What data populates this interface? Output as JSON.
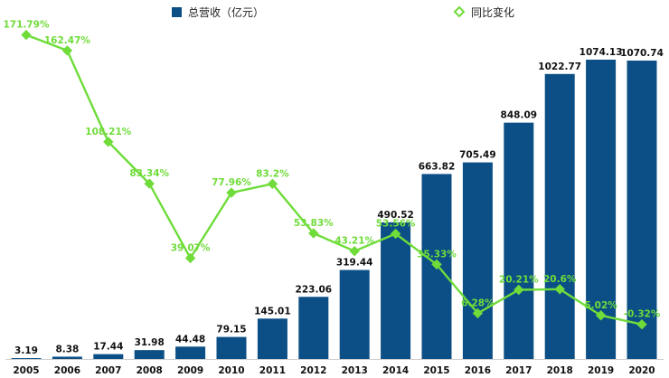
{
  "chart_data": {
    "type": "bar",
    "categories": [
      "2005",
      "2006",
      "2007",
      "2008",
      "2009",
      "2010",
      "2011",
      "2012",
      "2013",
      "2014",
      "2015",
      "2016",
      "2017",
      "2018",
      "2019",
      "2020"
    ],
    "series": [
      {
        "name": "总营收（亿元）",
        "type": "bar",
        "values": [
          3.19,
          8.38,
          17.44,
          31.98,
          44.48,
          79.15,
          145.01,
          223.06,
          319.44,
          490.52,
          663.82,
          705.49,
          848.09,
          1022.77,
          1074.13,
          1070.74
        ],
        "labels": [
          "3.19",
          "8.38",
          "17.44",
          "31.98",
          "44.48",
          "79.15",
          "145.01",
          "223.06",
          "319.44",
          "490.52",
          "663.82",
          "705.49",
          "848.09",
          "1022.77",
          "1074.13",
          "1070.74"
        ]
      },
      {
        "name": "同比变化",
        "type": "line",
        "values": [
          171.79,
          162.47,
          108.21,
          83.34,
          39.07,
          77.96,
          83.2,
          53.83,
          43.21,
          53.56,
          35.33,
          6.28,
          20.21,
          20.6,
          5.02,
          -0.32
        ],
        "labels": [
          "171.79%",
          "162.47%",
          "108.21%",
          "83.34%",
          "39.07%",
          "77.96%",
          "83.2%",
          "53.83%",
          "43.21%",
          "53.56%",
          "35.33%",
          "6.28%",
          "20.21%",
          "20.6%",
          "5.02%",
          "-0.32%"
        ]
      }
    ],
    "bar_ylim": [
      0,
      1100
    ],
    "line_ylim": [
      -15,
      185
    ],
    "legend_position": "top",
    "grid": false,
    "colors": {
      "bar": "#0b4f86",
      "line": "#6fdc3a",
      "text": "#111111"
    }
  }
}
